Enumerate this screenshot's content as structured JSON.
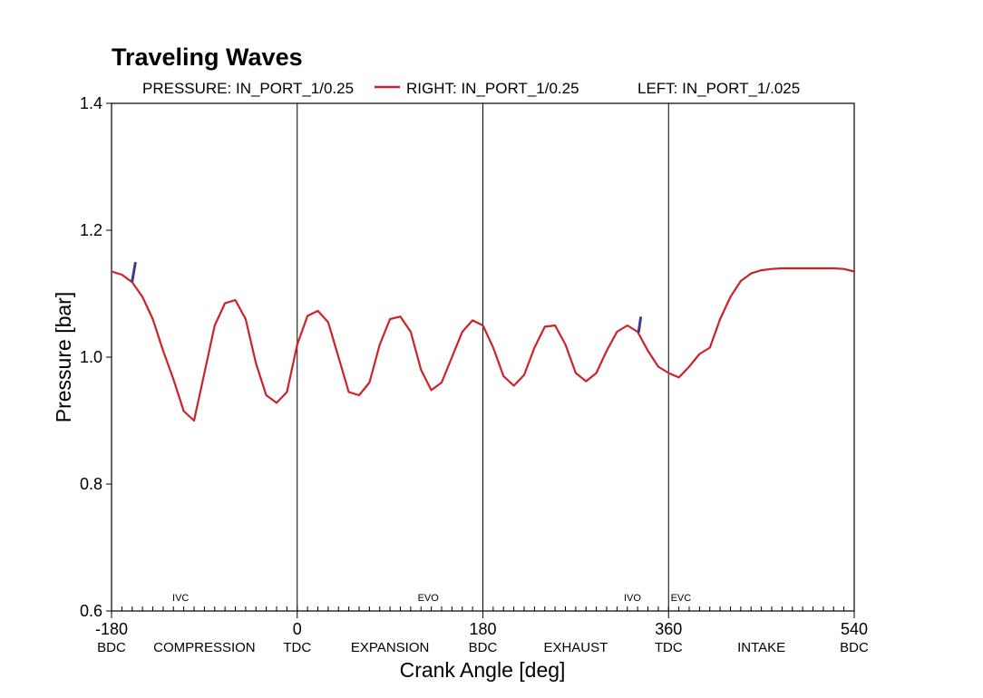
{
  "chart_data": {
    "type": "line",
    "title": "Traveling Waves",
    "xlabel": "Crank Angle [deg]",
    "ylabel": "Pressure [bar]",
    "xlim": [
      -180,
      540
    ],
    "ylim": [
      0.6,
      1.4
    ],
    "grid": false,
    "legend_position": "top",
    "legend": [
      {
        "label": "PRESSURE: IN_PORT_1/0.25",
        "color": ""
      },
      {
        "label": "RIGHT: IN_PORT_1/0.25",
        "color": "#cc2229"
      },
      {
        "label": "LEFT: IN_PORT_1/.025",
        "color": ""
      }
    ],
    "x_ticks": [
      {
        "value": -180,
        "label": "-180",
        "sublabel": "BDC"
      },
      {
        "value": 0,
        "label": "0",
        "sublabel": "TDC"
      },
      {
        "value": 180,
        "label": "180",
        "sublabel": "BDC"
      },
      {
        "value": 360,
        "label": "360",
        "sublabel": "TDC"
      },
      {
        "value": 540,
        "label": "540",
        "sublabel": "BDC"
      }
    ],
    "y_ticks": [
      {
        "value": 0.6,
        "label": "0.6"
      },
      {
        "value": 0.8,
        "label": "0.8"
      },
      {
        "value": 1.0,
        "label": "1.0"
      },
      {
        "value": 1.2,
        "label": "1.2"
      },
      {
        "value": 1.4,
        "label": "1.4"
      }
    ],
    "stroke_labels": [
      {
        "x": -90,
        "label": "COMPRESSION"
      },
      {
        "x": 90,
        "label": "EXPANSION"
      },
      {
        "x": 270,
        "label": "EXHAUST"
      },
      {
        "x": 450,
        "label": "INTAKE"
      }
    ],
    "events": [
      {
        "x": -113,
        "label": "IVC"
      },
      {
        "x": 127,
        "label": "EVO"
      },
      {
        "x": 325,
        "label": "IVO"
      },
      {
        "x": 372,
        "label": "EVC"
      }
    ],
    "vlines": [
      0,
      180,
      360
    ],
    "series": [
      {
        "name": "RIGHT: IN_PORT_1/0.25",
        "color": "#cc2229",
        "x": [
          -180,
          -170,
          -160,
          -150,
          -140,
          -130,
          -120,
          -110,
          -100,
          -90,
          -80,
          -70,
          -60,
          -50,
          -40,
          -30,
          -20,
          -10,
          0,
          10,
          20,
          30,
          40,
          50,
          60,
          70,
          80,
          90,
          100,
          110,
          120,
          130,
          140,
          150,
          160,
          170,
          180,
          190,
          200,
          210,
          220,
          230,
          240,
          250,
          260,
          270,
          280,
          290,
          300,
          310,
          320,
          330,
          340,
          350,
          360,
          370,
          380,
          390,
          400,
          410,
          420,
          430,
          440,
          450,
          460,
          470,
          480,
          490,
          500,
          510,
          520,
          530,
          540
        ],
        "y": [
          1.135,
          1.13,
          1.118,
          1.095,
          1.06,
          1.01,
          0.965,
          0.915,
          0.9,
          0.975,
          1.05,
          1.085,
          1.09,
          1.06,
          0.99,
          0.94,
          0.928,
          0.945,
          1.02,
          1.065,
          1.073,
          1.055,
          1.0,
          0.945,
          0.94,
          0.96,
          1.02,
          1.06,
          1.064,
          1.04,
          0.98,
          0.948,
          0.96,
          1.0,
          1.04,
          1.058,
          1.05,
          1.015,
          0.97,
          0.955,
          0.972,
          1.015,
          1.048,
          1.05,
          1.02,
          0.975,
          0.962,
          0.975,
          1.01,
          1.04,
          1.05,
          1.04,
          1.01,
          0.985,
          0.975,
          0.968,
          0.985,
          1.005,
          1.015,
          1.06,
          1.095,
          1.12,
          1.132,
          1.137,
          1.139,
          1.14,
          1.14,
          1.14,
          1.14,
          1.14,
          1.14,
          1.139,
          1.135
        ]
      },
      {
        "name": "",
        "color": "#3b3b8f",
        "x": [
          -160,
          -157
        ],
        "y": [
          1.12,
          1.148
        ]
      },
      {
        "name": "",
        "color": "#3b3b8f",
        "x": [
          331,
          333
        ],
        "y": [
          1.04,
          1.062
        ]
      }
    ]
  }
}
